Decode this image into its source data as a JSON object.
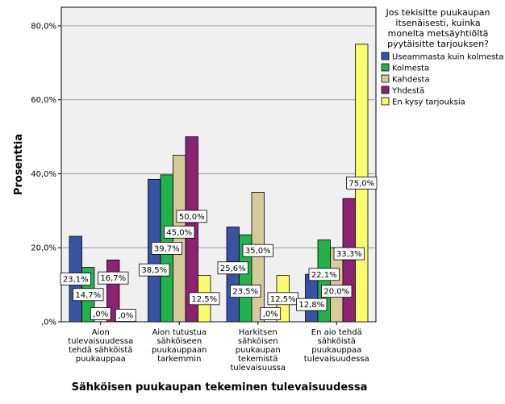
{
  "chart_data": {
    "type": "bar",
    "title": "",
    "xlabel": "Sähköisen puukaupan tekeminen tulevaisuudessa",
    "ylabel": "Prosenttia",
    "ylim": [
      0,
      85
    ],
    "yticks": [
      0,
      20,
      40,
      60,
      80
    ],
    "ytick_labels": [
      ",0%",
      "20,0%",
      "40,0%",
      "60,0%",
      "80,0%"
    ],
    "categories": [
      "Aion tulevaisuudessa tehdä sähköistä puukauppaa",
      "Aion tutustua sähköiseen puukauppaan tarkemmin",
      "Harkitsen sähköisen puukaupan tekemistä tulevaisuussa",
      "En aio tehdä sähköistä puukauppaa tulevaisuudessa"
    ],
    "category_lines": [
      [
        "Aion",
        "tulevaisuudessa",
        "tehdä sähköistä",
        "puukauppaa"
      ],
      [
        "Aion tutustua",
        "sähköiseen",
        "puukauppaan",
        "tarkemmin"
      ],
      [
        "Harkitsen",
        "sähköisen",
        "puukaupan",
        "tekemistä",
        "tulevaisuussa"
      ],
      [
        "En aio tehdä",
        "sähköistä",
        "puukauppaa",
        "tulevaisuudessa"
      ]
    ],
    "legend": {
      "placement": "right",
      "title_lines": [
        "Jos tekisitte puukaupan",
        "itsenäisesti, kuinka",
        "monelta metsäyhtiöltä",
        "pyytäisitte tarjouksen?"
      ]
    },
    "series": [
      {
        "name": "Useammasta kuin kolmesta",
        "color": "#3953a4",
        "values": [
          23.1,
          38.5,
          25.6,
          12.8
        ],
        "labels": [
          "23,1%",
          "38,5%",
          "25,6%",
          "12,8%"
        ]
      },
      {
        "name": "Kolmesta",
        "color": "#21b24b",
        "values": [
          14.7,
          39.7,
          23.5,
          22.1
        ],
        "labels": [
          "14,7%",
          "39,7%",
          "23,5%",
          "22,1%"
        ]
      },
      {
        "name": "Kahdesta",
        "color": "#d4ca9a",
        "values": [
          0.0,
          45.0,
          35.0,
          20.0
        ],
        "labels": [
          ",0%",
          "45,0%",
          "35,0%",
          "20,0%"
        ]
      },
      {
        "name": "Yhdestä",
        "color": "#8b2272",
        "values": [
          16.7,
          50.0,
          0.0,
          33.3
        ],
        "labels": [
          "16,7%",
          "50,0%",
          ",0%",
          "33,3%"
        ]
      },
      {
        "name": "En kysy tarjouksia",
        "color": "#fbfb6e",
        "values": [
          0.0,
          12.5,
          12.5,
          75.0
        ],
        "labels": [
          ",0%",
          "12,5%",
          "12,5%",
          "75,0%"
        ]
      }
    ]
  }
}
